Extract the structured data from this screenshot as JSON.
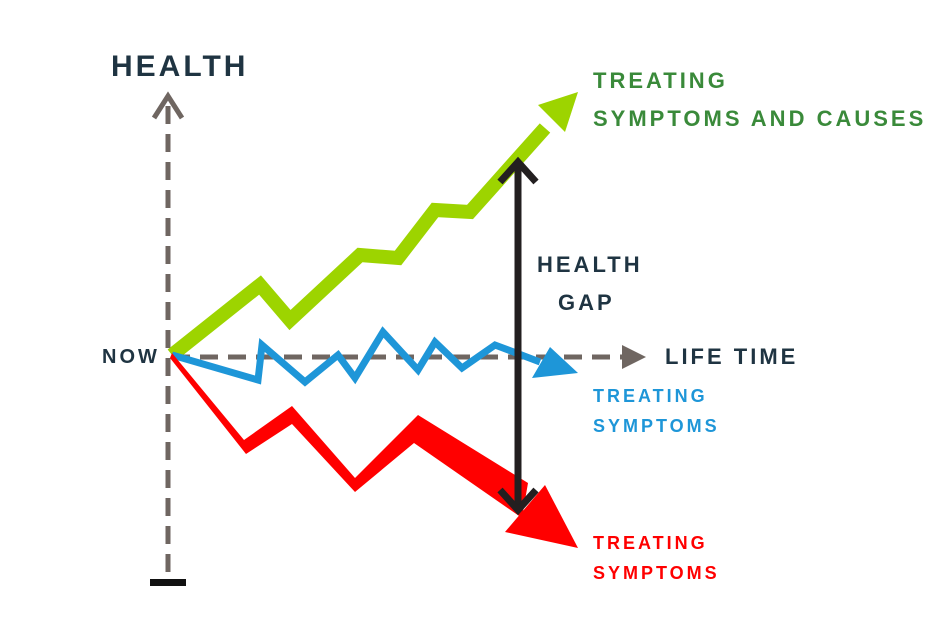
{
  "labels": {
    "y_axis": "HEALTH",
    "x_axis": "LIFE TIME",
    "origin": "NOW",
    "gap_line1": "HEALTH",
    "gap_line2": "GAP",
    "green_line1": "TREATING",
    "green_line2": "SYMPTOMS AND CAUSES",
    "blue_line1": "TREATING",
    "blue_line2": "SYMPTOMS",
    "red_line1": "TREATING",
    "red_line2": "SYMPTOMS"
  },
  "colors": {
    "axis": "#6f6661",
    "text": "#1f3442",
    "green_line": "#9dd400",
    "green_text": "#3a8a3a",
    "blue": "#1e96d8",
    "red": "#ff0000",
    "gap_arrow": "#231f20"
  }
}
